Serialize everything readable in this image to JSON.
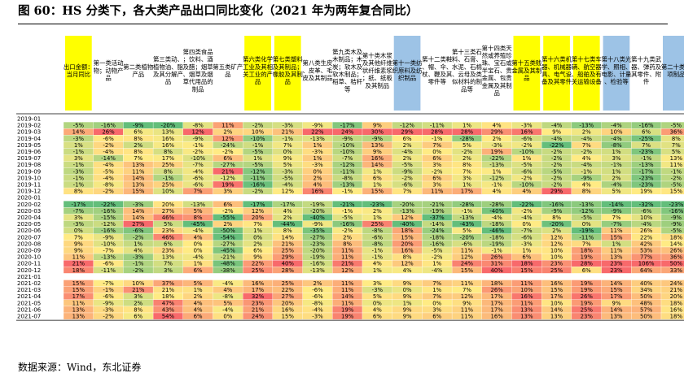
{
  "figure": {
    "title": "图 60：HS 分类下，各大类产品出口同比变化（2021 年为两年复合同比）",
    "source": "数据来源：Wind，东北证券"
  },
  "chart_data": {
    "type": "table",
    "subtype": "heatmap",
    "unit": "%",
    "columns": [
      {
        "label": "出口金额：当月同比",
        "highlight": "yellow"
      },
      {
        "label": "第一类活动物；动物产品",
        "highlight": ""
      },
      {
        "label": "第二类植物产品",
        "highlight": ""
      },
      {
        "label": "第三类动、植物油、脂及其分解产品",
        "highlight": ""
      },
      {
        "label": "第四类食品；饮料、酒及醋；烟草、烟草及烟草代用品的制品",
        "highlight": ""
      },
      {
        "label": "第五类矿产品",
        "highlight": ""
      },
      {
        "label": "第六类化学工业及其相关工业的产品",
        "highlight": "yellow"
      },
      {
        "label": "第七类塑料及其制品；橡胶及其制品",
        "highlight": "yellow"
      },
      {
        "label": "第八类生皮、皮革、毛皮及其制品",
        "highlight": ""
      },
      {
        "label": "第九类木及木制品；木炭；软木及软木制品；稻草、秸秆等",
        "highlight": ""
      },
      {
        "label": "第十类木浆及其他纤维状纤维素浆；纸、纸板及其制品",
        "highlight": ""
      },
      {
        "label": "第十一类纺织原料及纺织制品",
        "highlight": "blue"
      },
      {
        "label": "第十二类鞋、帽、伞、杖、鞭及其零件等",
        "highlight": ""
      },
      {
        "label": "第十三类石料、石膏、水泥、石棉、云母及类似材料的制品等",
        "highlight": ""
      },
      {
        "label": "第十四类天然或养殖珍珠、宝石或半宝石、贵金属、包贵金属及其制品",
        "highlight": ""
      },
      {
        "label": "第十五类贱金属及其制品",
        "highlight": "yellow"
      },
      {
        "label": "第十六类机器、机械器具、电气设备及其零件",
        "highlight": "yellow"
      },
      {
        "label": "第十七类车辆、航空器、船舶及有关运输设备",
        "highlight": "yellow"
      },
      {
        "label": "第十八类光学、照相、电影、计量、检验等",
        "highlight": "blue"
      },
      {
        "label": "第十九类武器、弹药及其零件、附件",
        "highlight": ""
      },
      {
        "label": "第二十类杂项制品",
        "highlight": "blue"
      }
    ],
    "rows": [
      {
        "date": "2019-01",
        "values": [
          null,
          null,
          null,
          null,
          null,
          null,
          null,
          null,
          null,
          null,
          null,
          null,
          null,
          null,
          null,
          null,
          null,
          null,
          null,
          null,
          null
        ]
      },
      {
        "date": "2019-02",
        "values": [
          -5,
          -16,
          -9,
          -20,
          -8,
          11,
          -2,
          -3,
          -9,
          -17,
          9,
          -12,
          -11,
          1,
          4,
          -3,
          -4,
          -13,
          -4,
          -16,
          -5
        ]
      },
      {
        "date": "2019-03",
        "values": [
          14,
          26,
          6,
          13,
          12,
          2,
          10,
          21,
          22,
          24,
          30,
          29,
          28,
          28,
          29,
          16,
          9,
          2,
          10,
          6,
          36
        ]
      },
      {
        "date": "2019-04",
        "values": [
          -3,
          -6,
          8,
          16,
          -9,
          12,
          -10,
          -1,
          -13,
          -9,
          -9,
          6,
          -1,
          -28,
          2,
          -6,
          -4,
          -4,
          -4,
          -25,
          8
        ]
      },
      {
        "date": "2019-05",
        "values": [
          1,
          -2,
          2,
          16,
          -1,
          -24,
          -1,
          7,
          1,
          -10,
          13,
          2,
          7,
          5,
          -3,
          -2,
          -22,
          7,
          -8,
          7,
          7
        ]
      },
      {
        "date": "2019-06",
        "values": [
          -1,
          -4,
          8,
          8,
          -2,
          -2,
          -5,
          0,
          -3,
          -10,
          9,
          -4,
          0,
          -2,
          19,
          -10,
          -2,
          -2,
          1,
          -23,
          5
        ]
      },
      {
        "date": "2019-07",
        "values": [
          3,
          -14,
          7,
          17,
          -10,
          6,
          1,
          9,
          1,
          -7,
          16,
          2,
          6,
          2,
          -22,
          1,
          -2,
          4,
          3,
          -1,
          13
        ]
      },
      {
        "date": "2019-08",
        "values": [
          -1,
          -4,
          13,
          25,
          -7,
          -27,
          -5,
          5,
          -3,
          -12,
          14,
          -5,
          3,
          8,
          -13,
          -5,
          -2,
          -4,
          -1,
          -13,
          11
        ]
      },
      {
        "date": "2019-09",
        "values": [
          -3,
          -5,
          11,
          8,
          -4,
          21,
          -12,
          -3,
          0,
          -11,
          1,
          -9,
          -2,
          7,
          1,
          -6,
          -5,
          -1,
          1,
          -17,
          -1
        ]
      },
      {
        "date": "2019-10",
        "values": [
          -1,
          -4,
          14,
          -1,
          -6,
          -12,
          -11,
          -5,
          2,
          -8,
          6,
          -2,
          6,
          3,
          -12,
          -2,
          -2,
          -9,
          2,
          -23,
          -2
        ]
      },
      {
        "date": "2019-11",
        "values": [
          -1,
          -8,
          13,
          25,
          -6,
          19,
          -16,
          -4,
          4,
          -13,
          1,
          -6,
          3,
          1,
          -1,
          -10,
          -2,
          4,
          -4,
          -23,
          -5
        ]
      },
      {
        "date": "2019-12",
        "values": [
          8,
          -2,
          15,
          10,
          7,
          3,
          -2,
          12,
          16,
          -1,
          15,
          7,
          11,
          17,
          4,
          4,
          29,
          8,
          5,
          19,
          15
        ]
      },
      {
        "date": "2020-01",
        "values": [
          null,
          null,
          null,
          null,
          null,
          null,
          null,
          null,
          null,
          null,
          null,
          null,
          null,
          null,
          null,
          null,
          null,
          null,
          null,
          null,
          null
        ]
      },
      {
        "date": "2020-02",
        "values": [
          -17,
          -22,
          -3,
          20,
          -13,
          6,
          -17,
          -17,
          -19,
          -21,
          -23,
          -20,
          -21,
          -28,
          -28,
          -22,
          -16,
          -13,
          -14,
          -32,
          -23
        ]
      },
      {
        "date": "2020-03",
        "values": [
          -7,
          -16,
          14,
          27,
          5,
          -2,
          12,
          4,
          -20,
          -1,
          2,
          -13,
          -19,
          -1,
          -40,
          -2,
          -9,
          -12,
          -9,
          -6,
          -16
        ]
      },
      {
        "date": "2020-04",
        "values": [
          3,
          -15,
          14,
          46,
          8,
          -55,
          20,
          2,
          -40,
          -5,
          1,
          12,
          -37,
          -13,
          -4,
          -4,
          8,
          -5,
          7,
          10,
          -9
        ]
      },
      {
        "date": "2020-05",
        "values": [
          -3,
          -12,
          27,
          5,
          -45,
          2,
          7,
          -44,
          -9,
          -16,
          25,
          -40,
          -14,
          -43,
          -18,
          0,
          -20,
          0,
          -7,
          -4,
          -9
        ]
      },
      {
        "date": "2020-06",
        "values": [
          0,
          -16,
          -6,
          23,
          -4,
          -50,
          1,
          8,
          -35,
          -2,
          -8,
          18,
          -24,
          5,
          -46,
          -7,
          2,
          -19,
          11,
          26,
          -5
        ]
      },
      {
        "date": "2020-07",
        "values": [
          7,
          -9,
          -2,
          46,
          4,
          -54,
          0,
          14,
          -27,
          2,
          -6,
          15,
          -18,
          -20,
          -18,
          -6,
          12,
          -11,
          15,
          22,
          18
        ]
      },
      {
        "date": "2020-08",
        "values": [
          9,
          -10,
          1,
          6,
          0,
          -27,
          2,
          21,
          -23,
          8,
          -8,
          20,
          -16,
          -6,
          -19,
          -3,
          12,
          7,
          1,
          42,
          14
        ]
      },
      {
        "date": "2020-09",
        "values": [
          9,
          -7,
          4,
          23,
          0,
          -45,
          6,
          25,
          -20,
          11,
          -1,
          16,
          -5,
          11,
          -1,
          1,
          10,
          18,
          11,
          53,
          26
        ]
      },
      {
        "date": "2020-10",
        "values": [
          11,
          -13,
          -3,
          13,
          -4,
          -21,
          9,
          29,
          -19,
          11,
          -1,
          8,
          -2,
          12,
          26,
          6,
          10,
          19,
          13,
          77,
          36
        ]
      },
      {
        "date": "2020-11",
        "values": [
          21,
          -6,
          -1,
          7,
          1,
          -48,
          22,
          40,
          -16,
          21,
          4,
          12,
          1,
          24,
          31,
          18,
          23,
          28,
          23,
          106,
          50
        ]
      },
      {
        "date": "2020-12",
        "values": [
          18,
          -11,
          -2,
          3,
          6,
          -38,
          25,
          28,
          -13,
          12,
          1,
          4,
          -4,
          15,
          40,
          15,
          25,
          6,
          23,
          64,
          33
        ]
      },
      {
        "date": "2021-01",
        "values": [
          null,
          null,
          null,
          null,
          null,
          null,
          null,
          null,
          null,
          null,
          null,
          null,
          null,
          null,
          null,
          null,
          null,
          null,
          null,
          null,
          null
        ]
      },
      {
        "date": "2021-02",
        "values": [
          15,
          -7,
          10,
          37,
          5,
          -4,
          16,
          25,
          2,
          11,
          3,
          9,
          7,
          11,
          18,
          11,
          16,
          19,
          14,
          40,
          24
        ]
      },
      {
        "date": "2021-03",
        "values": [
          15,
          -1,
          21,
          21,
          1,
          4,
          17,
          22,
          -6,
          11,
          -3,
          0,
          1,
          7,
          26,
          10,
          15,
          19,
          15,
          34,
          21
        ]
      },
      {
        "date": "2021-04",
        "values": [
          17,
          -6,
          3,
          18,
          2,
          -8,
          32,
          27,
          -6,
          14,
          5,
          9,
          7,
          12,
          17,
          16,
          17,
          26,
          17,
          50,
          20
        ]
      },
      {
        "date": "2021-05",
        "values": [
          11,
          -9,
          2,
          47,
          4,
          5,
          23,
          20,
          -8,
          11,
          0,
          1,
          0,
          9,
          17,
          11,
          10,
          19,
          9,
          48,
          18
        ]
      },
      {
        "date": "2021-06",
        "values": [
          13,
          -3,
          8,
          43,
          4,
          -4,
          21,
          16,
          -4,
          19,
          4,
          9,
          3,
          11,
          17,
          13,
          14,
          25,
          14,
          57,
          16
        ]
      },
      {
        "date": "2021-07",
        "values": [
          13,
          -2,
          6,
          54,
          6,
          0,
          24,
          15,
          -3,
          19,
          6,
          9,
          6,
          11,
          16,
          13,
          13,
          23,
          13,
          50,
          18
        ]
      }
    ],
    "colorscale": {
      "min_color": "#63be7b",
      "mid_color": "#ffeb84",
      "max_color": "#f8696b"
    }
  }
}
